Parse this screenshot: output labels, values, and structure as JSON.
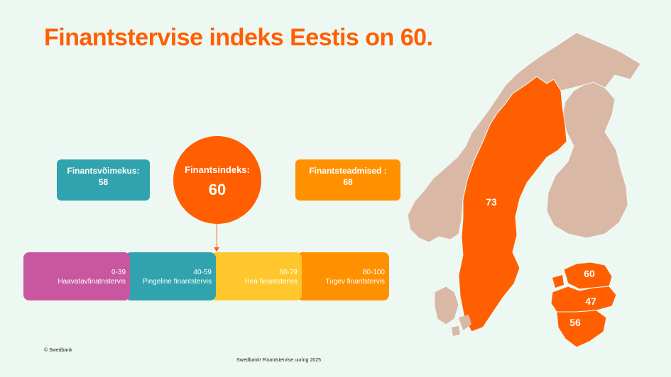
{
  "title": "Finantstervise indeks Eestis on 60.",
  "capability": {
    "label": "Finantsvõimekus:",
    "value": "58"
  },
  "index": {
    "label": "Finantsindeks:",
    "value": "60"
  },
  "knowledge": {
    "label": "Finantsteadmised :",
    "value": "68"
  },
  "scale": [
    {
      "range": "0-39",
      "label": "Haavatavfinatnstervis",
      "color": "#c9579f"
    },
    {
      "range": "40-59",
      "label": "Pingeline finantstervis",
      "color": "#31a3ae"
    },
    {
      "range": "60-79",
      "label": "Hea finantstervis",
      "color": "#ffc72c"
    },
    {
      "range": "80-100",
      "label": "Tugev finantstervis",
      "color": "#ff9100"
    }
  ],
  "map": {
    "sweden": "73",
    "estonia": "60",
    "latvia": "47",
    "lithuania": "56",
    "colors": {
      "highlight": "#ff5f00",
      "land": "#d9b8a5"
    }
  },
  "footer": {
    "copyright": "© Swedbank",
    "source": "Swedbank! Finantstervise uuring 2025"
  }
}
